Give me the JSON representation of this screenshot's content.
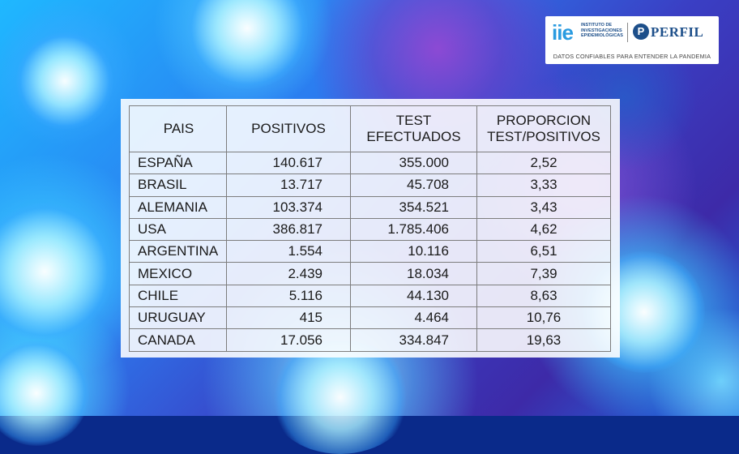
{
  "logo": {
    "mark": "iie",
    "institute": "INSTITUTO DE INVESTIGACIONES EPIDEMIOLÓGICAS",
    "brand": "PERFIL",
    "brand_icon": "P",
    "tagline": "DATOS CONFIABLES PARA ENTENDER LA PANDEMIA"
  },
  "colors": {
    "background_accent": "#1fb8ff",
    "logo_blue": "#1d4f8a",
    "logo_mark": "#2a9be0"
  },
  "chart_data": {
    "type": "table",
    "columns": [
      "PAIS",
      "POSITIVOS",
      "TEST\nEFECTUADOS",
      "PROPORCION\nTEST/POSITIVOS"
    ],
    "rows": [
      [
        "ESPAÑA",
        "140.617",
        "355.000",
        "2,52"
      ],
      [
        "BRASIL",
        "13.717",
        "45.708",
        "3,33"
      ],
      [
        "ALEMANIA",
        "103.374",
        "354.521",
        "3,43"
      ],
      [
        "USA",
        "386.817",
        "1.785.406",
        "4,62"
      ],
      [
        "ARGENTINA",
        "1.554",
        "10.116",
        "6,51"
      ],
      [
        "MEXICO",
        "2.439",
        "18.034",
        "7,39"
      ],
      [
        "CHILE",
        "5.116",
        "44.130",
        "8,63"
      ],
      [
        "URUGUAY",
        "415",
        "4.464",
        "10,76"
      ],
      [
        "CANADA",
        "17.056",
        "334.847",
        "19,63"
      ]
    ]
  }
}
